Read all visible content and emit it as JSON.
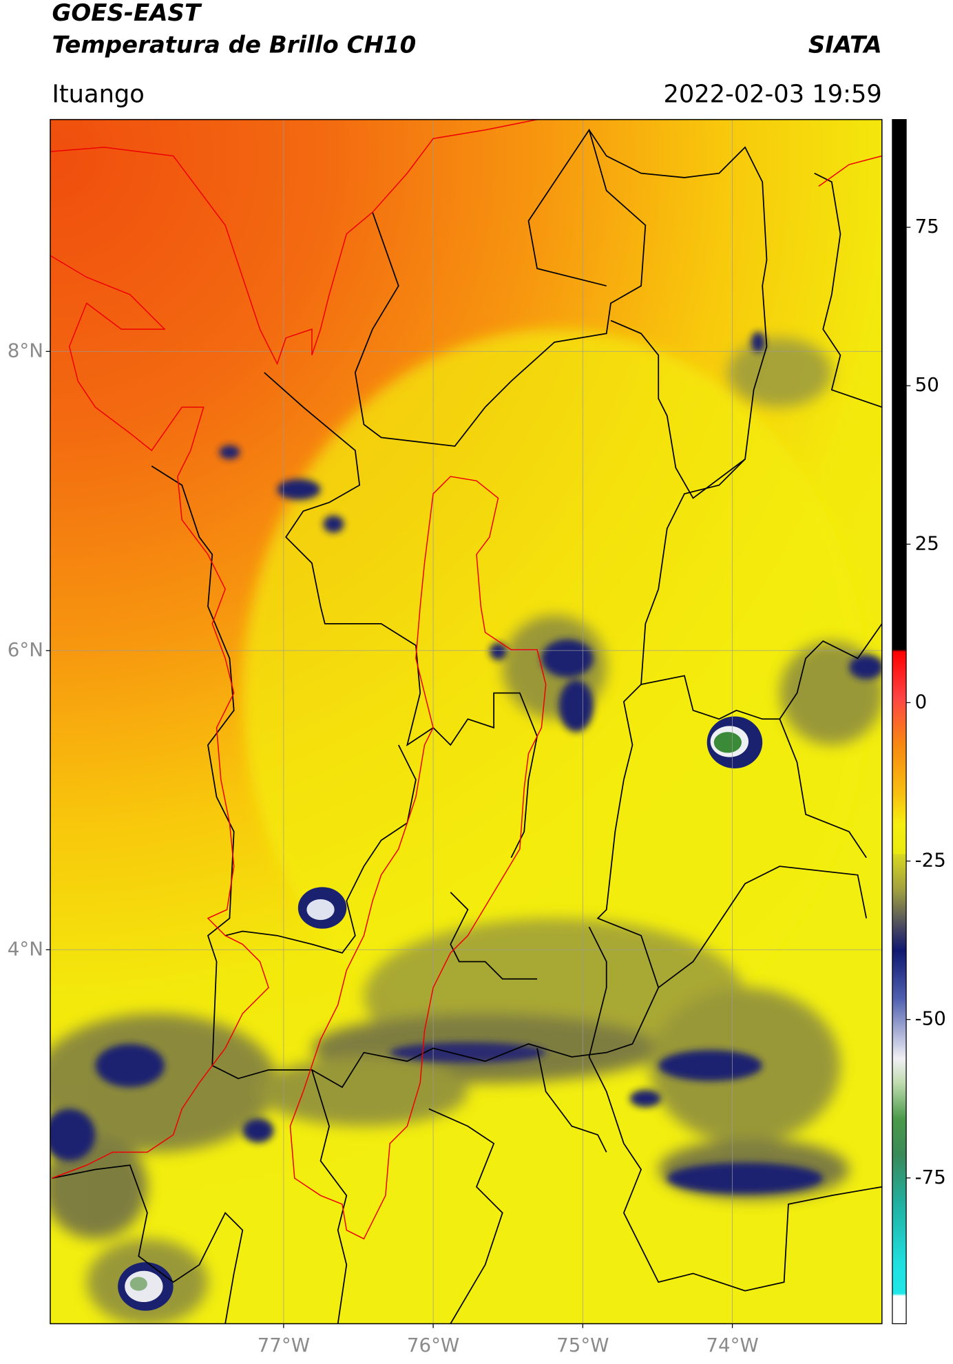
{
  "header": {
    "satellite": "GOES-EAST",
    "product": "Temperatura de Brillo CH10",
    "source": "SIATA",
    "location": "Ituango",
    "timestamp": "2022-02-03 19:59"
  },
  "map": {
    "xlim": [
      -78.56,
      -73.0
    ],
    "ylim": [
      1.5,
      9.55
    ],
    "lat_ticks": [
      {
        "value": 8,
        "label": "8°N"
      },
      {
        "value": 6,
        "label": "6°N"
      },
      {
        "value": 4,
        "label": "4°N"
      }
    ],
    "lon_ticks": [
      {
        "value": -77,
        "label": "77°W"
      },
      {
        "value": -76,
        "label": "76°W"
      },
      {
        "value": -75,
        "label": "75°W"
      },
      {
        "value": -74,
        "label": "74°W"
      }
    ],
    "grid": true
  },
  "colorbar": {
    "lim": [
      -98,
      92
    ],
    "ticks": [
      75,
      50,
      25,
      0,
      -25,
      -50,
      -75
    ]
  }
}
